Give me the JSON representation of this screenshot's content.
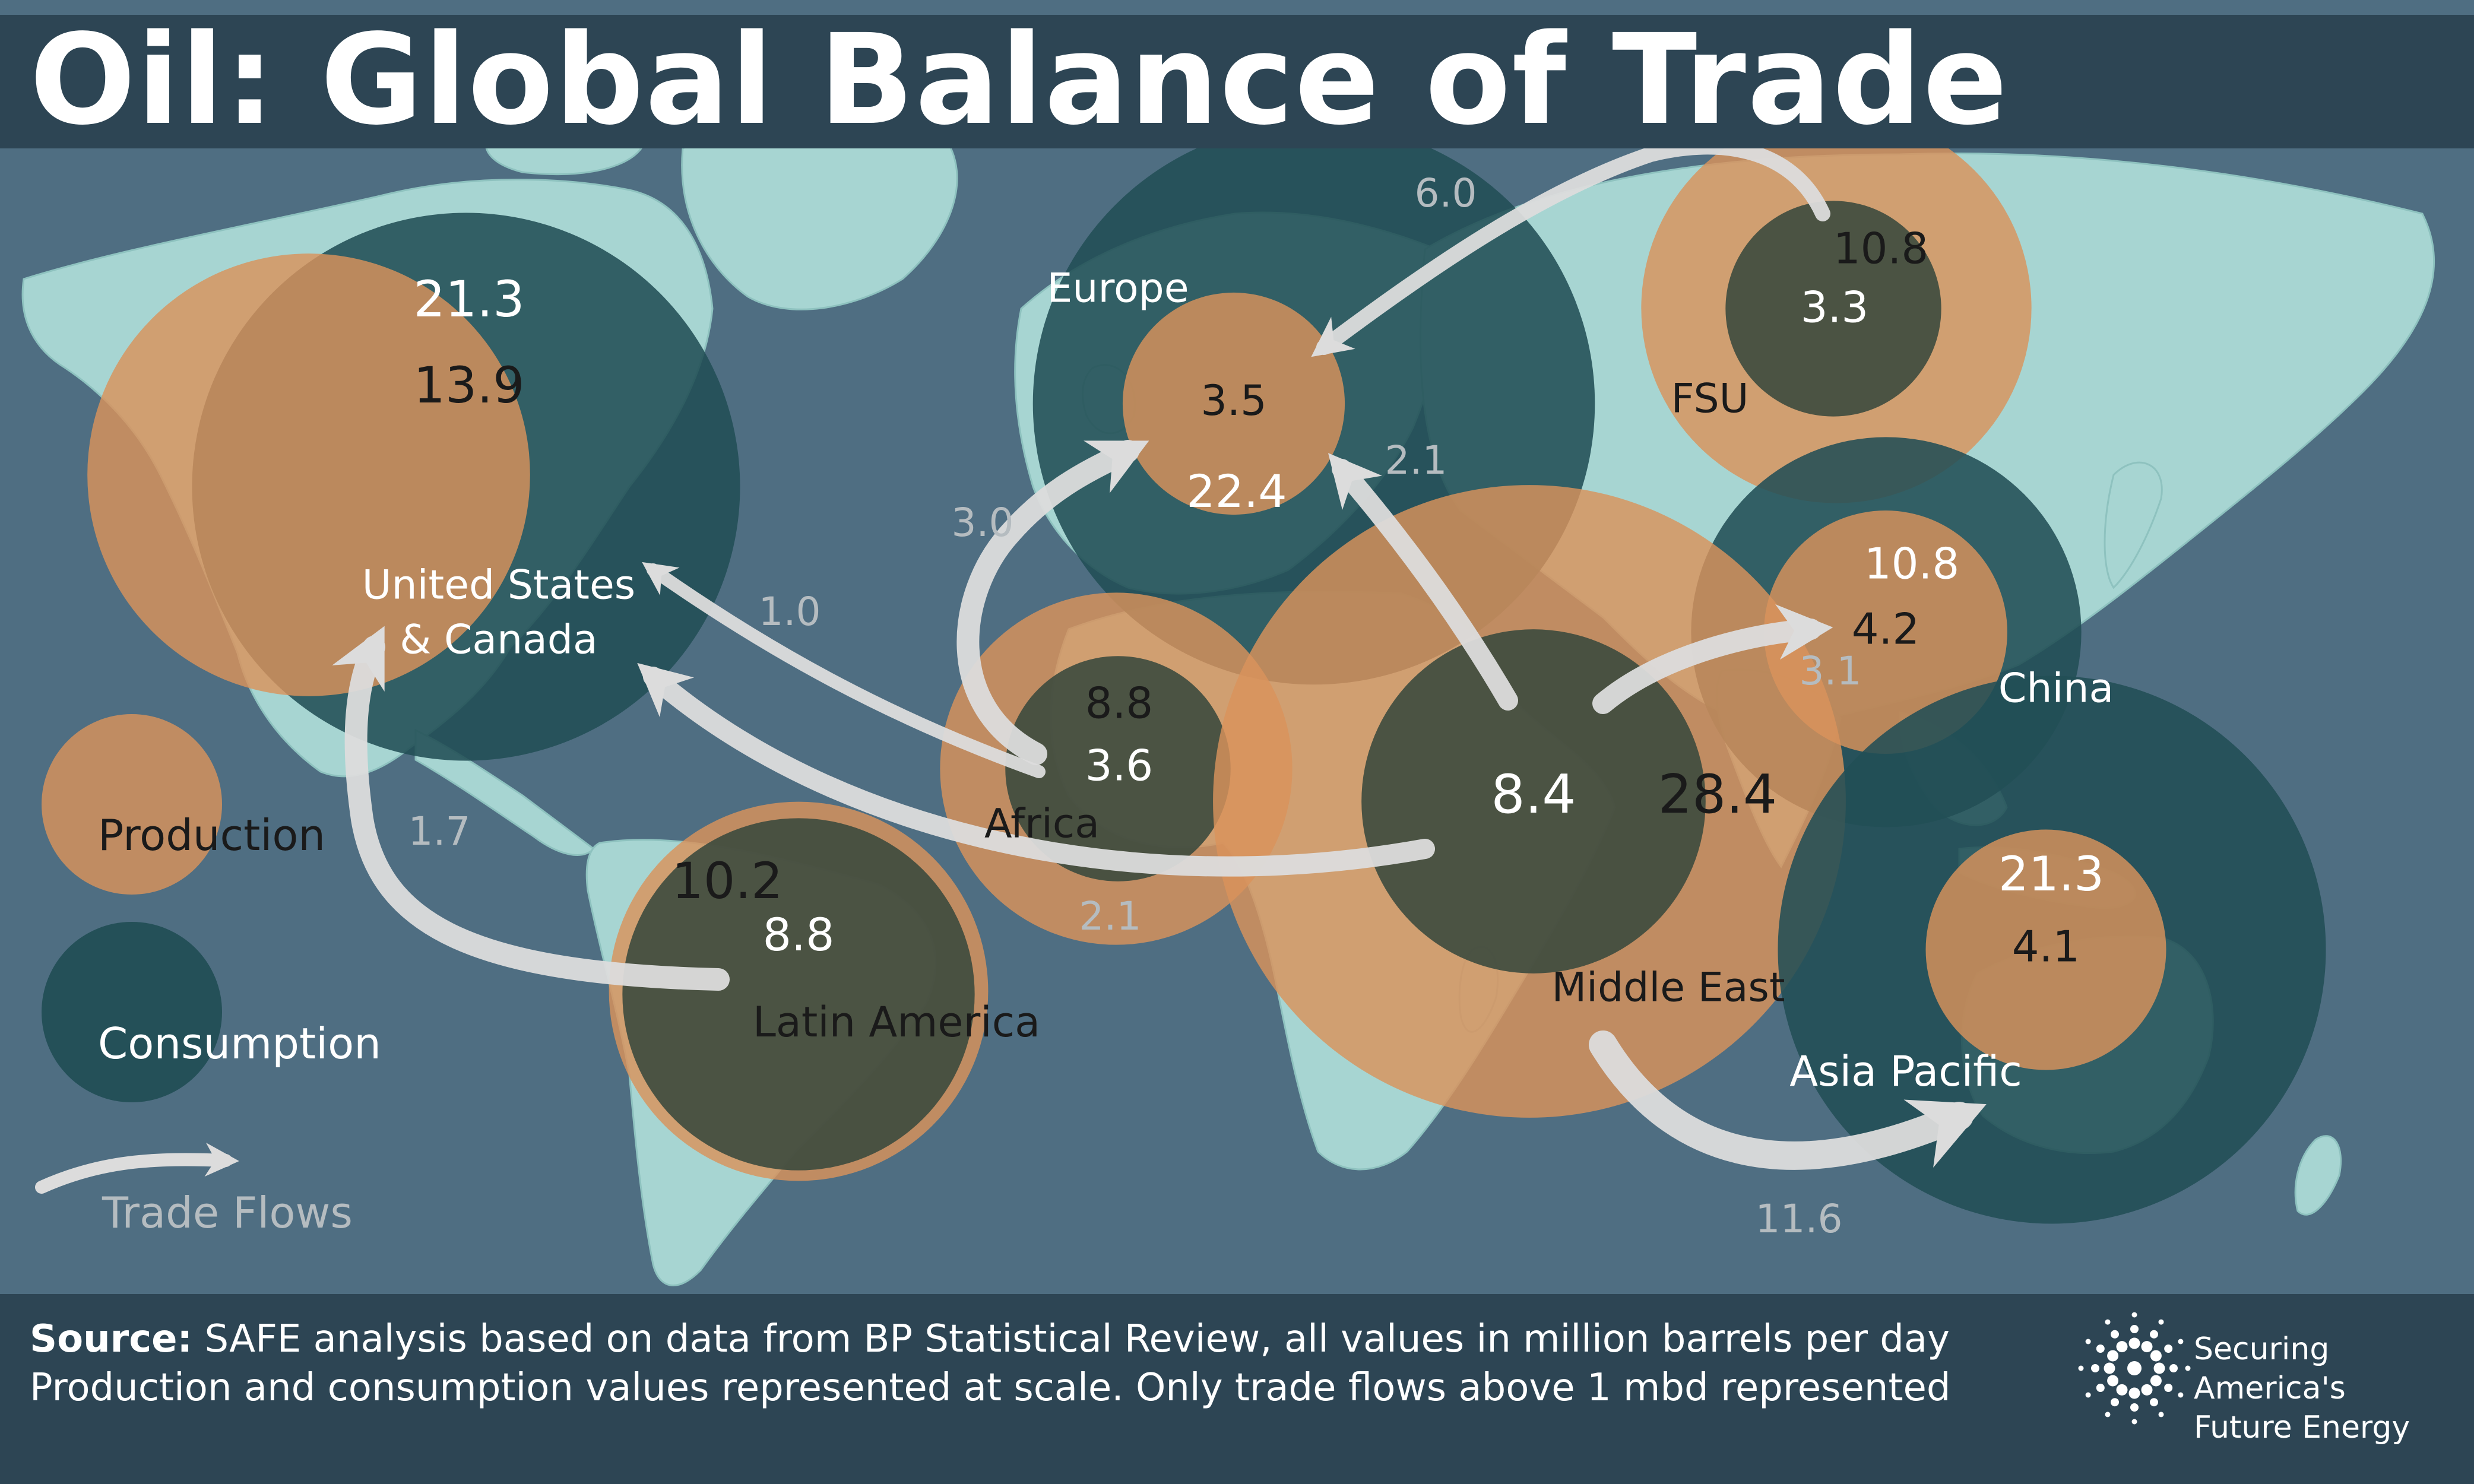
{
  "title": "Oil: Global Balance of Trade",
  "source_label": "Source:",
  "source_line1": "SAFE analysis based on data from BP Statistical Review, all values in million barrels per day",
  "source_line2": "Production and consumption values represented at scale. Only trade flows above 1 mbd represented",
  "brand_line1": "Securing America's",
  "brand_line2": "Future Energy",
  "legend": {
    "production": "Production",
    "consumption": "Consumption",
    "trade_flows": "Trade Flows"
  },
  "colors": {
    "ocean": "#4f6e82",
    "land": "#a7d5d2",
    "production": "#d9925c",
    "consumption": "#224e55",
    "overlap": "#3c4a3e",
    "arrow": "#dcdcdc",
    "flow_label": "#b5bcc0",
    "header": "#2d4554"
  },
  "regions": [
    {
      "name": "United States & Canada",
      "name_lines": [
        "United States",
        "& Canada"
      ],
      "production": "13.9",
      "consumption": "21.3"
    },
    {
      "name": "Europe",
      "name_lines": [
        "Europe"
      ],
      "production": "3.5",
      "consumption": "22.4"
    },
    {
      "name": "FSU",
      "name_lines": [
        "FSU"
      ],
      "production": "10.8",
      "consumption": "3.3"
    },
    {
      "name": "China",
      "name_lines": [
        "China"
      ],
      "production": "4.2",
      "consumption": "10.8"
    },
    {
      "name": "Africa",
      "name_lines": [
        "Africa"
      ],
      "production": "8.8",
      "consumption": "3.6"
    },
    {
      "name": "Middle East",
      "name_lines": [
        "Middle East"
      ],
      "production": "28.4",
      "consumption": "8.4"
    },
    {
      "name": "Latin America",
      "name_lines": [
        "Latin America"
      ],
      "production": "10.2",
      "consumption": "8.8"
    },
    {
      "name": "Asia Pacific",
      "name_lines": [
        "Asia Pacific"
      ],
      "production": "4.1",
      "consumption": "21.3"
    }
  ],
  "trade_flows": [
    {
      "from": "FSU",
      "to": "Europe",
      "value": "6.0"
    },
    {
      "from": "Middle East",
      "to": "Europe",
      "value": "2.1"
    },
    {
      "from": "Africa",
      "to": "Europe",
      "value": "3.0"
    },
    {
      "from": "Africa",
      "to": "United States & Canada",
      "value": "1.0"
    },
    {
      "from": "Latin America",
      "to": "United States & Canada",
      "value": "1.7"
    },
    {
      "from": "Middle East",
      "to": "United States & Canada",
      "value": "2.1"
    },
    {
      "from": "Middle East",
      "to": "China",
      "value": "3.1"
    },
    {
      "from": "Middle East",
      "to": "Asia Pacific",
      "value": "11.6"
    }
  ]
}
